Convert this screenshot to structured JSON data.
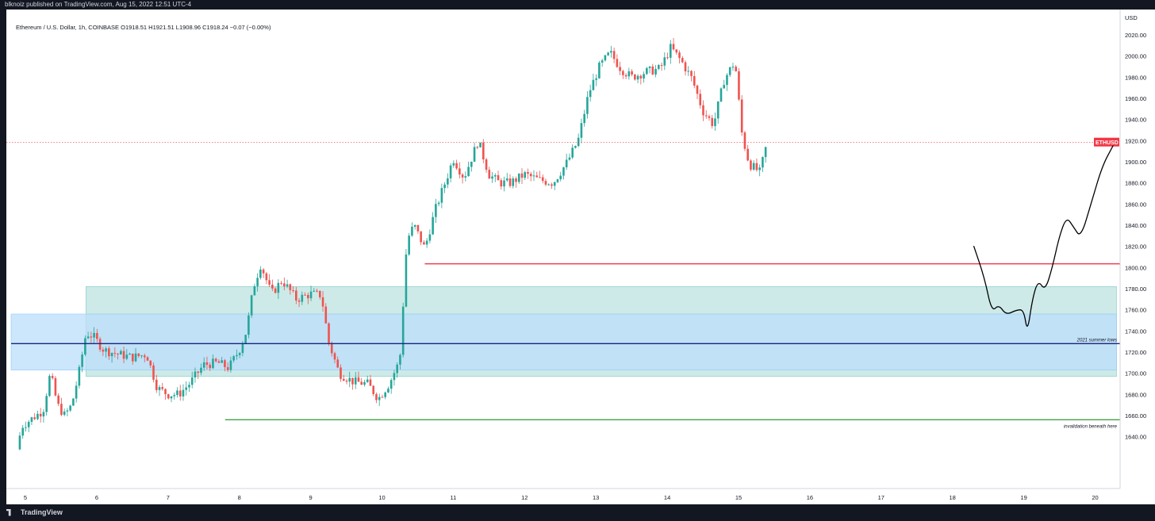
{
  "header": {
    "publisher": "blknoiz published on TradingView.com, Aug 15, 2022 12:51 UTC-4"
  },
  "legend": {
    "text": "Ethereum / U.S. Dollar, 1h, COINBASE  O1918.51  H1921.51  L1908.96  C1918.24  −0.07 (−0.00%)"
  },
  "brand": {
    "footer": "TradingView"
  },
  "colors": {
    "up": "#26a69a",
    "down": "#ef5350",
    "background": "#ffffff",
    "frame": "#131722",
    "zone_teal": "#b2dfdb",
    "zone_blue": "#bbdefb",
    "line_red": "#f23645",
    "line_navy": "#1a237e",
    "line_green": "#43a047",
    "price_line": "#f23645"
  },
  "chart_data": {
    "type": "candlestick",
    "symbol": "ETHUSD",
    "timeframe": "1h",
    "y_axis": {
      "currency": "USD",
      "range": [
        1628,
        2036
      ],
      "ticks": [
        1640,
        1660,
        1680,
        1700,
        1720,
        1740,
        1760,
        1780,
        1800,
        1820,
        1840,
        1860,
        1880,
        1900,
        1920,
        1940,
        1960,
        1980,
        2000,
        2020
      ]
    },
    "x_axis": {
      "ticks": [
        {
          "label": "5",
          "day": 5
        },
        {
          "label": "6",
          "day": 6
        },
        {
          "label": "7",
          "day": 7
        },
        {
          "label": "8",
          "day": 8
        },
        {
          "label": "9",
          "day": 9
        },
        {
          "label": "10",
          "day": 10
        },
        {
          "label": "11",
          "day": 11
        },
        {
          "label": "12",
          "day": 12
        },
        {
          "label": "13",
          "day": 13
        },
        {
          "label": "14",
          "day": 14
        },
        {
          "label": "15",
          "day": 15
        },
        {
          "label": "16",
          "day": 16
        },
        {
          "label": "17",
          "day": 17
        },
        {
          "label": "18",
          "day": 18
        },
        {
          "label": "19",
          "day": 19
        },
        {
          "label": "20",
          "day": 20
        }
      ]
    },
    "close_path": [
      [
        4.88,
        1628
      ],
      [
        4.95,
        1650
      ],
      [
        5.05,
        1655
      ],
      [
        5.15,
        1660
      ],
      [
        5.25,
        1665
      ],
      [
        5.35,
        1700
      ],
      [
        5.45,
        1670
      ],
      [
        5.55,
        1660
      ],
      [
        5.65,
        1670
      ],
      [
        5.75,
        1700
      ],
      [
        5.85,
        1738
      ],
      [
        5.95,
        1735
      ],
      [
        6.1,
        1722
      ],
      [
        6.3,
        1718
      ],
      [
        6.5,
        1715
      ],
      [
        6.7,
        1718
      ],
      [
        6.85,
        1686
      ],
      [
        7.0,
        1680
      ],
      [
        7.15,
        1680
      ],
      [
        7.3,
        1690
      ],
      [
        7.5,
        1708
      ],
      [
        7.7,
        1710
      ],
      [
        7.85,
        1705
      ],
      [
        8.0,
        1722
      ],
      [
        8.1,
        1740
      ],
      [
        8.2,
        1782
      ],
      [
        8.3,
        1803
      ],
      [
        8.45,
        1775
      ],
      [
        8.6,
        1788
      ],
      [
        8.8,
        1770
      ],
      [
        9.0,
        1775
      ],
      [
        9.15,
        1774
      ],
      [
        9.25,
        1730
      ],
      [
        9.4,
        1700
      ],
      [
        9.6,
        1692
      ],
      [
        9.8,
        1690
      ],
      [
        9.95,
        1676
      ],
      [
        10.1,
        1690
      ],
      [
        10.25,
        1712
      ],
      [
        10.35,
        1826
      ],
      [
        10.45,
        1840
      ],
      [
        10.6,
        1818
      ],
      [
        10.75,
        1855
      ],
      [
        10.9,
        1883
      ],
      [
        11.0,
        1903
      ],
      [
        11.15,
        1885
      ],
      [
        11.35,
        1920
      ],
      [
        11.5,
        1888
      ],
      [
        11.65,
        1880
      ],
      [
        11.8,
        1880
      ],
      [
        12.0,
        1888
      ],
      [
        12.2,
        1883
      ],
      [
        12.4,
        1880
      ],
      [
        12.6,
        1900
      ],
      [
        12.75,
        1920
      ],
      [
        12.9,
        1965
      ],
      [
        13.05,
        1990
      ],
      [
        13.2,
        2003
      ],
      [
        13.35,
        1988
      ],
      [
        13.5,
        1980
      ],
      [
        13.7,
        1985
      ],
      [
        13.9,
        1988
      ],
      [
        14.05,
        2008
      ],
      [
        14.2,
        1995
      ],
      [
        14.35,
        1978
      ],
      [
        14.5,
        1948
      ],
      [
        14.65,
        1935
      ],
      [
        14.8,
        1978
      ],
      [
        14.95,
        1995
      ],
      [
        15.05,
        1925
      ],
      [
        15.15,
        1898
      ],
      [
        15.3,
        1890
      ],
      [
        15.4,
        1918
      ]
    ],
    "current_price": {
      "label": "ETHUSD",
      "value": "1918.24",
      "countdown": "08:34",
      "price": 1918.24
    },
    "levels": [
      {
        "name": "resistance-red",
        "value": 1803.45,
        "label": "1803.45",
        "color": "#f23645",
        "from_day": 10.6
      },
      {
        "name": "summer-lows-navy",
        "value": 1728.0,
        "label": "1728.00",
        "color": "#1a237e",
        "from_day": 4.8,
        "note": "2021 summer lows"
      },
      {
        "name": "invalidation-green",
        "value": 1656.0,
        "label": "1656.00",
        "color": "#43a047",
        "from_day": 7.8,
        "note": "invalidation beneath here"
      }
    ],
    "zones": [
      {
        "name": "teal-demand-zone",
        "from_day": 5.85,
        "to_day": 20.3,
        "low": 1697,
        "high": 1782,
        "color": "#b2dfdb"
      },
      {
        "name": "blue-zone",
        "from_day": 4.8,
        "to_day": 20.3,
        "low": 1703,
        "high": 1756,
        "color": "#bbdefb"
      }
    ],
    "projection_path": [
      [
        18.3,
        1820
      ],
      [
        18.45,
        1790
      ],
      [
        18.55,
        1758
      ],
      [
        18.65,
        1765
      ],
      [
        18.75,
        1755
      ],
      [
        18.9,
        1760
      ],
      [
        19.0,
        1760
      ],
      [
        19.05,
        1738
      ],
      [
        19.12,
        1770
      ],
      [
        19.2,
        1788
      ],
      [
        19.3,
        1778
      ],
      [
        19.4,
        1800
      ],
      [
        19.5,
        1830
      ],
      [
        19.6,
        1848
      ],
      [
        19.7,
        1838
      ],
      [
        19.8,
        1828
      ],
      [
        19.95,
        1862
      ],
      [
        20.1,
        1896
      ],
      [
        20.25,
        1915
      ]
    ]
  }
}
